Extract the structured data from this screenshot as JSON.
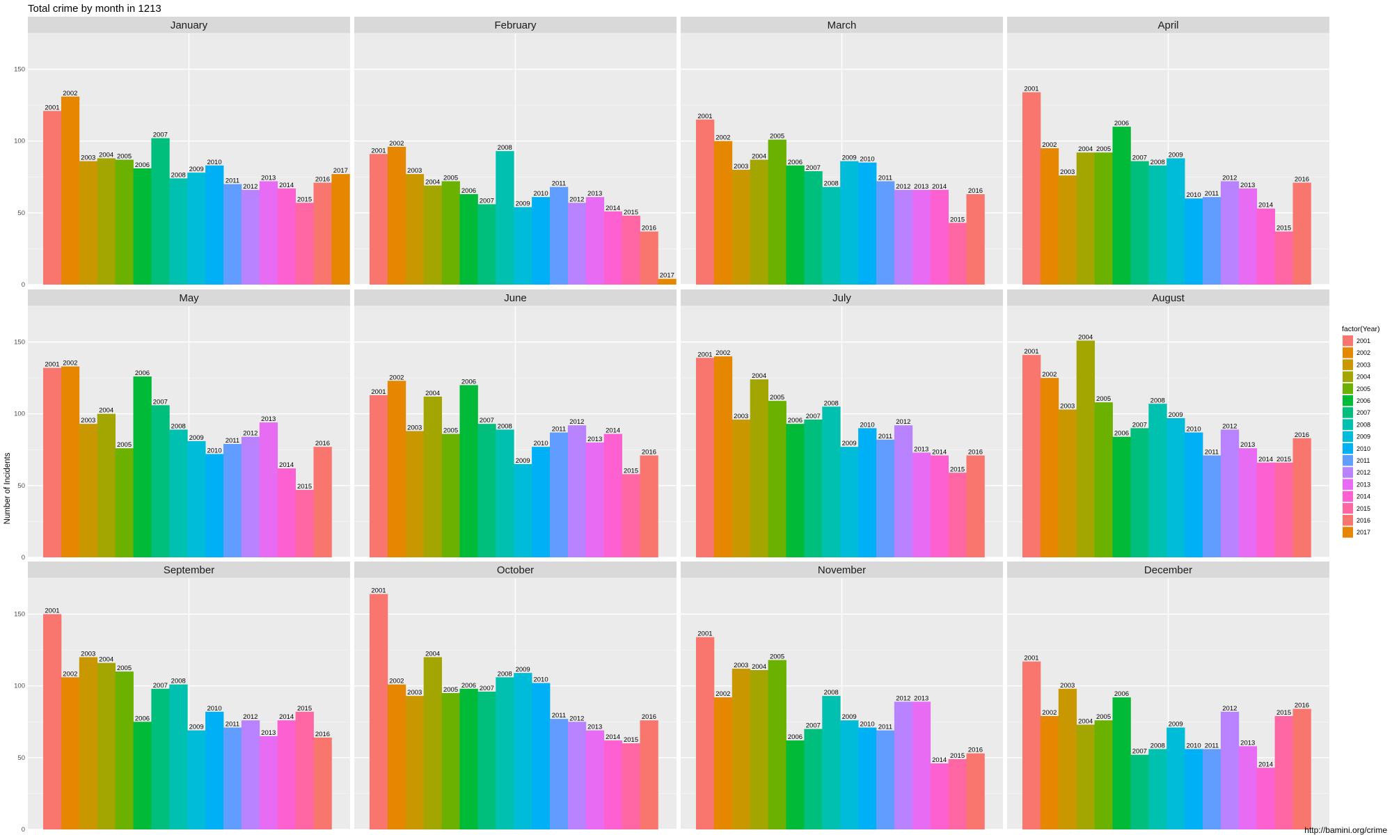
{
  "title": "Total crime by month in 1213",
  "ylabel": "Number of Incidents",
  "caption": "http://bamini.org/crime",
  "legend": {
    "title": "factor(Year)",
    "entries": [
      {
        "label": "2001",
        "color": "#F8766D"
      },
      {
        "label": "2002",
        "color": "#E58700"
      },
      {
        "label": "2003",
        "color": "#C99800"
      },
      {
        "label": "2004",
        "color": "#A3A500"
      },
      {
        "label": "2005",
        "color": "#6BB100"
      },
      {
        "label": "2006",
        "color": "#00BA38"
      },
      {
        "label": "2007",
        "color": "#00BF7D"
      },
      {
        "label": "2008",
        "color": "#00C0AF"
      },
      {
        "label": "2009",
        "color": "#00BCD8"
      },
      {
        "label": "2010",
        "color": "#00B0F6"
      },
      {
        "label": "2011",
        "color": "#619CFF"
      },
      {
        "label": "2012",
        "color": "#B983FF"
      },
      {
        "label": "2013",
        "color": "#E76BF3"
      },
      {
        "label": "2014",
        "color": "#FD61D1"
      },
      {
        "label": "2015",
        "color": "#FF67A4"
      },
      {
        "label": "2016",
        "color": "#F8766D"
      },
      {
        "label": "2017",
        "color": "#E58700"
      }
    ]
  },
  "chart_data": {
    "type": "bar",
    "title": "Total crime by month in 1213",
    "ylabel": "Number of Incidents",
    "ylim": [
      0,
      175
    ],
    "yticks": [
      0,
      50,
      100,
      150
    ],
    "grid": true,
    "legend_position": "right",
    "facets": [
      {
        "name": "January",
        "years": [
          "2001",
          "2002",
          "2003",
          "2004",
          "2005",
          "2006",
          "2007",
          "2008",
          "2009",
          "2010",
          "2011",
          "2012",
          "2013",
          "2014",
          "2015",
          "2016",
          "2017"
        ],
        "values": [
          121,
          131,
          86,
          88,
          87,
          81,
          102,
          74,
          78,
          83,
          70,
          66,
          72,
          67,
          57,
          71,
          77
        ]
      },
      {
        "name": "February",
        "years": [
          "2001",
          "2002",
          "2003",
          "2004",
          "2005",
          "2006",
          "2007",
          "2008",
          "2009",
          "2010",
          "2011",
          "2012",
          "2013",
          "2014",
          "2015",
          "2016",
          "2017"
        ],
        "values": [
          91,
          96,
          77,
          69,
          72,
          63,
          56,
          93,
          54,
          61,
          68,
          57,
          61,
          51,
          48,
          37,
          4
        ]
      },
      {
        "name": "March",
        "years": [
          "2001",
          "2002",
          "2003",
          "2004",
          "2005",
          "2006",
          "2007",
          "2008",
          "2009",
          "2010",
          "2011",
          "2012",
          "2013",
          "2014",
          "2015",
          "2016"
        ],
        "values": [
          115,
          100,
          80,
          87,
          101,
          83,
          79,
          68,
          86,
          85,
          72,
          66,
          66,
          66,
          43,
          63
        ]
      },
      {
        "name": "April",
        "years": [
          "2001",
          "2002",
          "2003",
          "2004",
          "2005",
          "2006",
          "2007",
          "2008",
          "2009",
          "2010",
          "2011",
          "2012",
          "2013",
          "2014",
          "2015",
          "2016"
        ],
        "values": [
          134,
          95,
          76,
          92,
          92,
          110,
          86,
          83,
          88,
          60,
          61,
          72,
          67,
          53,
          37,
          71
        ]
      },
      {
        "name": "May",
        "years": [
          "2001",
          "2002",
          "2003",
          "2004",
          "2005",
          "2006",
          "2007",
          "2008",
          "2009",
          "2010",
          "2011",
          "2012",
          "2013",
          "2014",
          "2015",
          "2016"
        ],
        "values": [
          132,
          133,
          93,
          100,
          76,
          126,
          106,
          89,
          81,
          72,
          79,
          84,
          94,
          62,
          47,
          77
        ]
      },
      {
        "name": "June",
        "years": [
          "2001",
          "2002",
          "2003",
          "2004",
          "2005",
          "2006",
          "2007",
          "2008",
          "2009",
          "2010",
          "2011",
          "2012",
          "2013",
          "2014",
          "2015",
          "2016"
        ],
        "values": [
          113,
          123,
          88,
          112,
          86,
          120,
          93,
          89,
          65,
          77,
          87,
          92,
          80,
          86,
          58,
          71
        ]
      },
      {
        "name": "July",
        "years": [
          "2001",
          "2002",
          "2003",
          "2004",
          "2005",
          "2006",
          "2007",
          "2008",
          "2009",
          "2010",
          "2011",
          "2012",
          "2013",
          "2014",
          "2015",
          "2016"
        ],
        "values": [
          139,
          140,
          96,
          124,
          109,
          93,
          96,
          105,
          77,
          90,
          82,
          92,
          73,
          71,
          59,
          71
        ]
      },
      {
        "name": "August",
        "years": [
          "2001",
          "2002",
          "2003",
          "2004",
          "2005",
          "2006",
          "2007",
          "2008",
          "2009",
          "2010",
          "2011",
          "2012",
          "2013",
          "2014",
          "2015",
          "2016"
        ],
        "values": [
          141,
          125,
          103,
          151,
          108,
          84,
          90,
          107,
          97,
          87,
          71,
          89,
          76,
          66,
          66,
          83
        ]
      },
      {
        "name": "September",
        "years": [
          "2001",
          "2002",
          "2003",
          "2004",
          "2005",
          "2006",
          "2007",
          "2008",
          "2009",
          "2010",
          "2011",
          "2012",
          "2013",
          "2014",
          "2015",
          "2016"
        ],
        "values": [
          150,
          106,
          120,
          116,
          110,
          75,
          98,
          101,
          69,
          82,
          71,
          76,
          65,
          76,
          82,
          64
        ]
      },
      {
        "name": "October",
        "years": [
          "2001",
          "2002",
          "2003",
          "2004",
          "2005",
          "2006",
          "2007",
          "2008",
          "2009",
          "2010",
          "2011",
          "2012",
          "2013",
          "2014",
          "2015",
          "2016"
        ],
        "values": [
          164,
          101,
          93,
          120,
          95,
          98,
          96,
          106,
          109,
          102,
          77,
          75,
          69,
          62,
          60,
          76
        ]
      },
      {
        "name": "November",
        "years": [
          "2001",
          "2002",
          "2003",
          "2004",
          "2005",
          "2006",
          "2007",
          "2008",
          "2009",
          "2010",
          "2011",
          "2012",
          "2013",
          "2014",
          "2015",
          "2016"
        ],
        "values": [
          134,
          92,
          112,
          111,
          118,
          62,
          70,
          93,
          76,
          71,
          69,
          89,
          89,
          46,
          49,
          53
        ]
      },
      {
        "name": "December",
        "years": [
          "2001",
          "2002",
          "2003",
          "2004",
          "2005",
          "2006",
          "2007",
          "2008",
          "2009",
          "2010",
          "2011",
          "2012",
          "2013",
          "2014",
          "2015",
          "2016"
        ],
        "values": [
          117,
          79,
          98,
          73,
          76,
          92,
          52,
          56,
          71,
          56,
          56,
          82,
          58,
          43,
          79,
          84
        ]
      }
    ]
  }
}
